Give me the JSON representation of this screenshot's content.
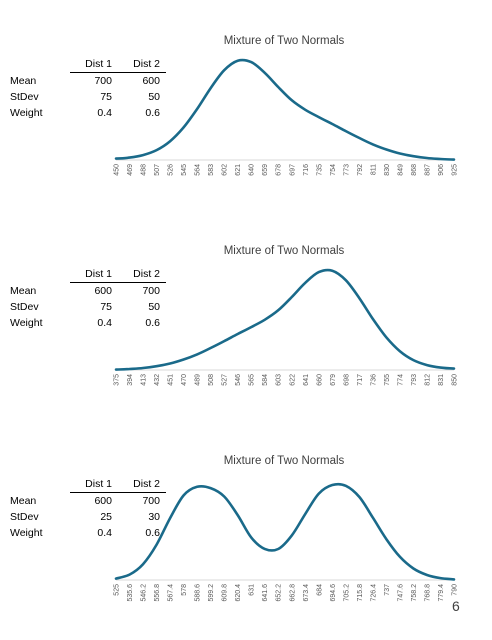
{
  "page_number": "6",
  "chart_data": [
    {
      "type": "line",
      "title": "Mixture of Two Normals",
      "params": {
        "header": [
          "",
          "Dist 1",
          "Dist 2"
        ],
        "rows": [
          {
            "label": "Mean",
            "d1": "700",
            "d2": "600"
          },
          {
            "label": "StDev",
            "d1": "75",
            "d2": "50"
          },
          {
            "label": "Weight",
            "d1": "0.4",
            "d2": "0.6"
          }
        ]
      },
      "x": [
        "450",
        "469",
        "488",
        "507",
        "526",
        "545",
        "564",
        "583",
        "602",
        "621",
        "640",
        "659",
        "678",
        "697",
        "716",
        "735",
        "754",
        "773",
        "792",
        "811",
        "830",
        "849",
        "868",
        "887",
        "906",
        "925"
      ],
      "values": [
        7e-05,
        0.00012,
        0.00025,
        0.0005,
        0.00095,
        0.00165,
        0.00258,
        0.00363,
        0.00454,
        0.00502,
        0.00495,
        0.00441,
        0.00369,
        0.00302,
        0.00254,
        0.00217,
        0.00182,
        0.00146,
        0.00111,
        0.00079,
        0.00053,
        0.00033,
        0.00019,
        0.0001,
        5e-05,
        2e-05
      ],
      "ylim": [
        0,
        0.00546
      ],
      "grid": false,
      "legend": "none",
      "line_color": "#1a6a8a"
    },
    {
      "type": "line",
      "title": "Mixture of Two Normals",
      "params": {
        "header": [
          "",
          "Dist 1",
          "Dist 2"
        ],
        "rows": [
          {
            "label": "Mean",
            "d1": "600",
            "d2": "700"
          },
          {
            "label": "StDev",
            "d1": "75",
            "d2": "50"
          },
          {
            "label": "Weight",
            "d1": "0.4",
            "d2": "0.6"
          }
        ]
      },
      "x": [
        "375",
        "394",
        "413",
        "432",
        "451",
        "470",
        "489",
        "508",
        "527",
        "546",
        "565",
        "584",
        "603",
        "622",
        "641",
        "660",
        "679",
        "698",
        "717",
        "736",
        "755",
        "774",
        "793",
        "812",
        "831",
        "850"
      ],
      "values": [
        2e-05,
        5e-05,
        0.0001,
        0.00019,
        0.00033,
        0.00053,
        0.00079,
        0.00111,
        0.00146,
        0.00182,
        0.00217,
        0.00254,
        0.00302,
        0.00369,
        0.00441,
        0.00495,
        0.00502,
        0.00454,
        0.00363,
        0.00258,
        0.00165,
        0.00095,
        0.0005,
        0.00025,
        0.00012,
        7e-05
      ],
      "ylim": [
        0,
        0.00546
      ],
      "grid": false,
      "legend": "none",
      "line_color": "#1a6a8a"
    },
    {
      "type": "line",
      "title": "Mixture of Two Normals",
      "params": {
        "header": [
          "",
          "Dist 1",
          "Dist 2"
        ],
        "rows": [
          {
            "label": "Mean",
            "d1": "600",
            "d2": "700"
          },
          {
            "label": "StDev",
            "d1": "25",
            "d2": "30"
          },
          {
            "label": "Weight",
            "d1": "0.4",
            "d2": "0.6"
          }
        ]
      },
      "x": [
        "525",
        "535.6",
        "546.2",
        "556.8",
        "567.4",
        "578",
        "588.6",
        "599.2",
        "609.8",
        "620.4",
        "631",
        "641.6",
        "652.2",
        "662.8",
        "673.4",
        "684",
        "694.6",
        "705.2",
        "715.8",
        "726.4",
        "737",
        "747.6",
        "758.2",
        "768.8",
        "779.4",
        "790"
      ],
      "values": [
        0.00018,
        0.00068,
        0.00197,
        0.00443,
        0.00774,
        0.01057,
        0.01165,
        0.01149,
        0.01044,
        0.00811,
        0.00532,
        0.00389,
        0.00388,
        0.00557,
        0.00826,
        0.0108,
        0.01188,
        0.01177,
        0.01037,
        0.00779,
        0.0051,
        0.0029,
        0.00144,
        0.00062,
        0.00024,
        8e-05
      ],
      "ylim": [
        0,
        0.0135
      ],
      "grid": false,
      "legend": "none",
      "line_color": "#1a6a8a"
    }
  ]
}
